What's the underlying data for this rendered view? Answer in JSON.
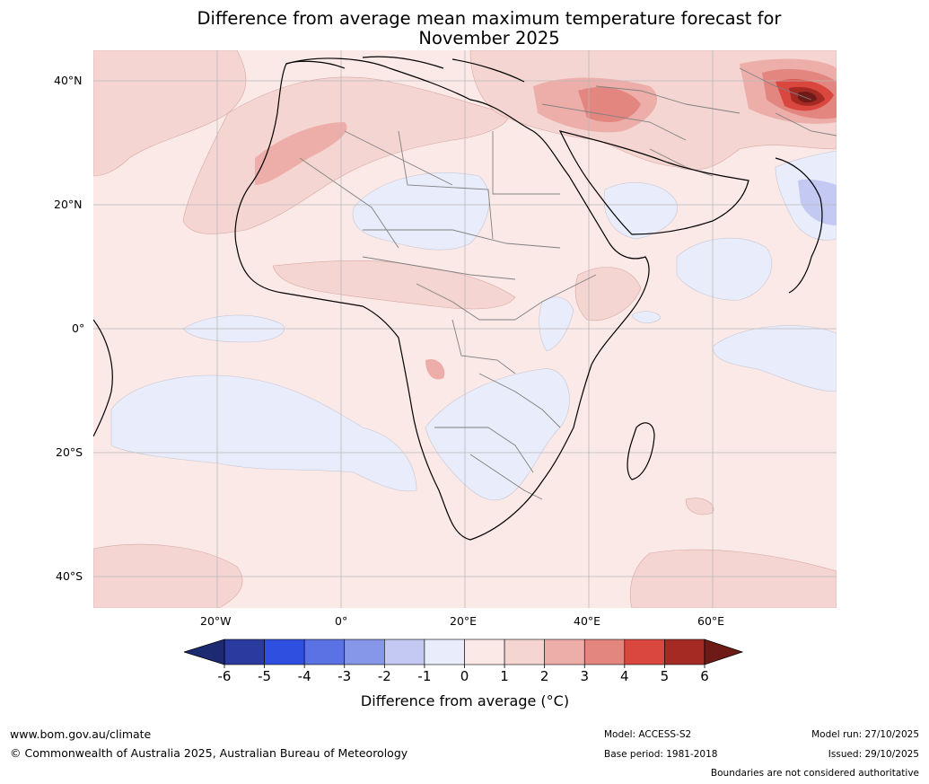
{
  "title": {
    "line1": "Difference from average mean maximum temperature forecast for",
    "line2": "November 2025"
  },
  "map": {
    "region": "Africa, Middle East and adjacent oceans",
    "latitude_labels": [
      "40°N",
      "20°N",
      "0°",
      "20°S",
      "40°S"
    ],
    "longitude_labels": [
      "20°W",
      "0°",
      "20°E",
      "40°E",
      "60°E"
    ],
    "colors": {
      "ocean_land_default": "#fbe9e7",
      "warm_1_2": "#f5d5d1",
      "warm_2_3": "#edaeaa",
      "warm_3_4": "#e48680",
      "warm_4_5": "#d9473e",
      "warm_5_6": "#a62a24",
      "warm_gt6": "#6e1a17",
      "cool_0_-1": "#e9ecfb",
      "cool_-1_-2": "#c3c9f2",
      "gridline": "#b9b9b9",
      "coastline": "#000000",
      "borders": "#808080"
    }
  },
  "colorbar": {
    "title": "Difference from average (°C)",
    "title_prefix": "Difference from average (",
    "title_unit": "°C",
    "title_suffix": ")",
    "ticks": [
      "-6",
      "-5",
      "-4",
      "-3",
      "-2",
      "-1",
      "0",
      "1",
      "2",
      "3",
      "4",
      "5",
      "6"
    ],
    "colors": [
      "#2a3a9e",
      "#2e4fe0",
      "#5a72e3",
      "#8696e9",
      "#c3c9f2",
      "#e9ecfb",
      "#fbe9e7",
      "#f5d5d1",
      "#edaeaa",
      "#e48680",
      "#d9473e",
      "#a62a24"
    ],
    "below_color": "#1c2a72",
    "above_color": "#6e1a17"
  },
  "footer": {
    "url": "www.bom.gov.au/climate",
    "copyright": "© Commonwealth of Australia 2025, Australian Bureau of Meteorology",
    "model": "Model: ACCESS-S2",
    "base_period": "Base period: 1981-2018",
    "model_run": "Model run: 27/10/2025",
    "issued": "Issued: 29/10/2025",
    "disclaimer": "Boundaries are not considered authoritative"
  }
}
